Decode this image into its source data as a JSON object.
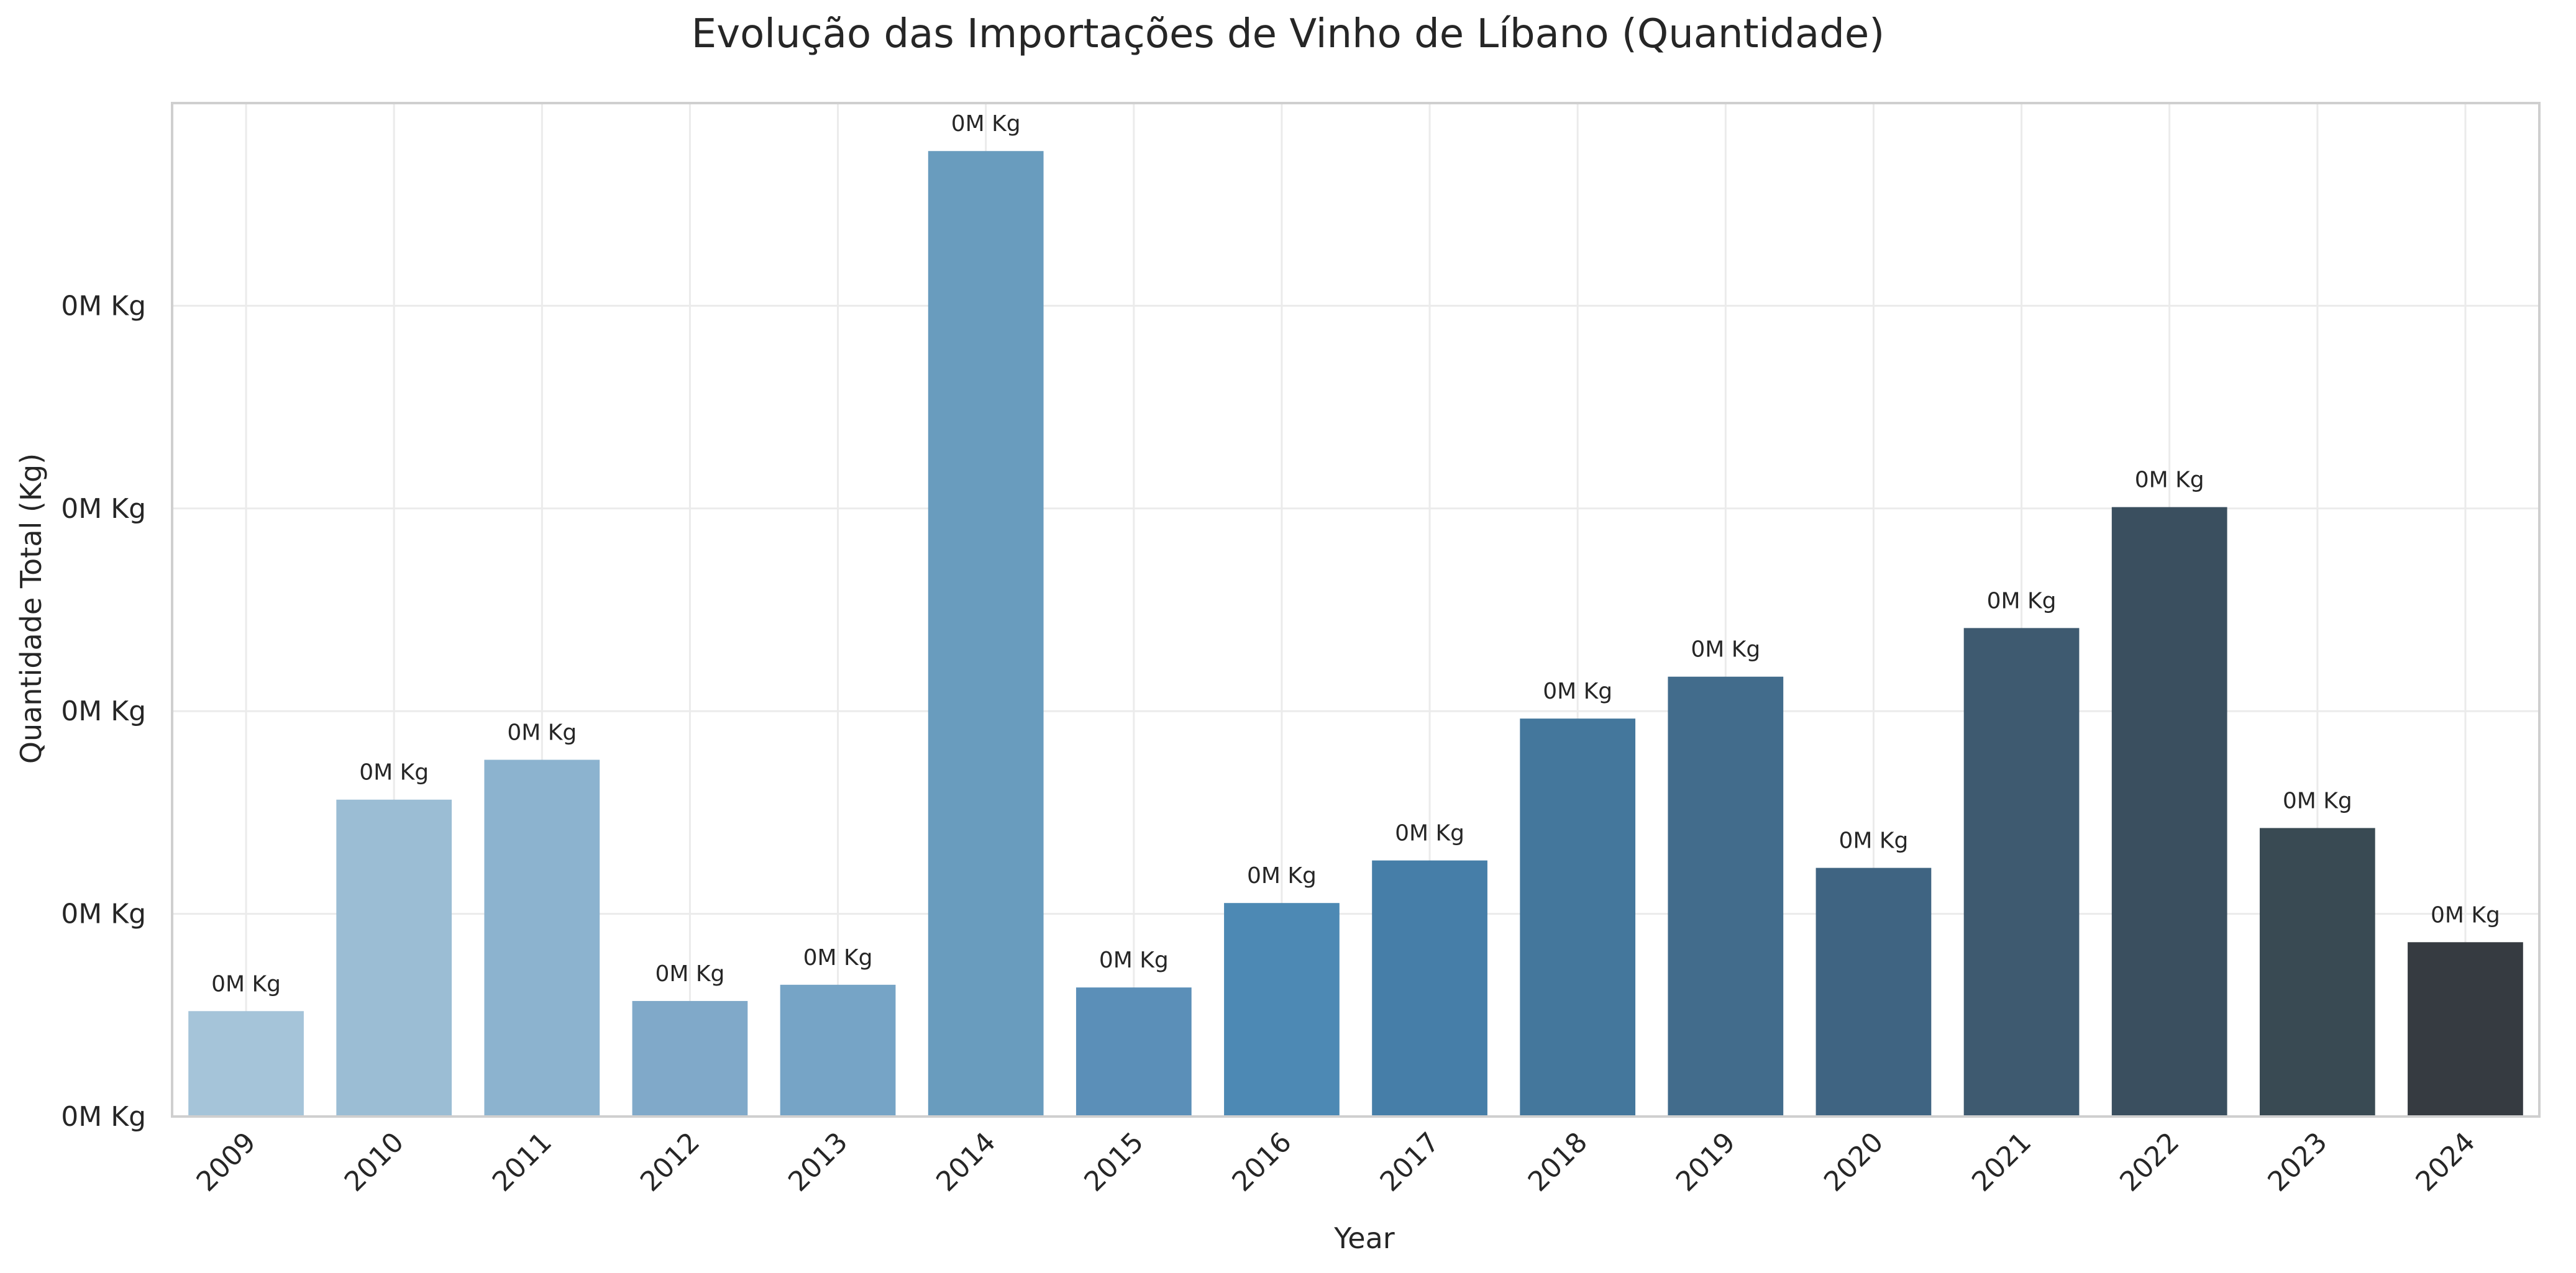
{
  "chart_data": {
    "type": "bar",
    "title": "Evolução das Importações de Vinho de Líbano (Quantidade)",
    "xlabel": "Year",
    "ylabel": "Quantidade Total (Kg)",
    "categories": [
      "2009",
      "2010",
      "2011",
      "2012",
      "2013",
      "2014",
      "2015",
      "2016",
      "2017",
      "2018",
      "2019",
      "2020",
      "2021",
      "2022",
      "2023",
      "2024"
    ],
    "values": [
      1560,
      4690,
      5280,
      1710,
      1950,
      14290,
      1910,
      3160,
      3790,
      5890,
      6510,
      3680,
      7230,
      9020,
      4270,
      2580
    ],
    "data_labels": [
      "0M Kg",
      "0M Kg",
      "0M Kg",
      "0M Kg",
      "0M Kg",
      "0M Kg",
      "0M Kg",
      "0M Kg",
      "0M Kg",
      "0M Kg",
      "0M Kg",
      "0M Kg",
      "0M Kg",
      "0M Kg",
      "0M Kg",
      "0M Kg"
    ],
    "y_ticks": [
      0,
      3000,
      6000,
      9000,
      12000
    ],
    "y_tick_labels": [
      "0M Kg",
      "0M Kg",
      "0M Kg",
      "0M Kg",
      "0M Kg"
    ],
    "ylim": [
      0,
      15000
    ],
    "grid": true,
    "legend": "none",
    "colors": [
      "#a5c4d9",
      "#9bbdd4",
      "#8cb3cf",
      "#80a9c9",
      "#76a4c6",
      "#699cbe",
      "#5b8fb8",
      "#4d89b4",
      "#467ea8",
      "#44779c",
      "#426c8c",
      "#3f6482",
      "#3e5a70",
      "#3a4f5f",
      "#394a53",
      "#363b41"
    ]
  }
}
